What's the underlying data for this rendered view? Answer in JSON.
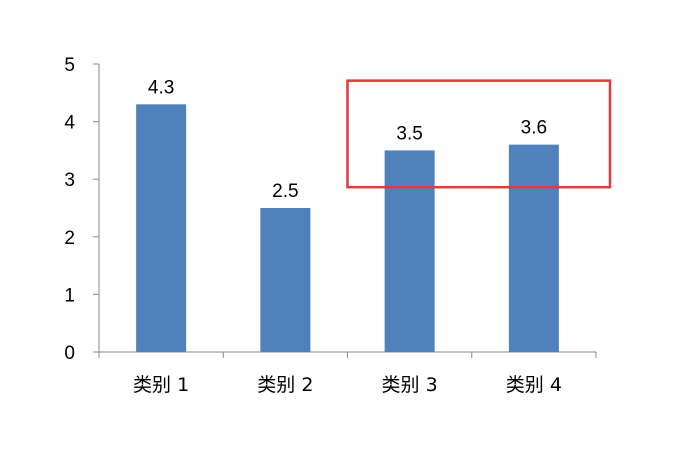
{
  "chart_data": {
    "type": "bar",
    "categories": [
      "类别 1",
      "类别 2",
      "类别 3",
      "类别 4"
    ],
    "values": [
      4.3,
      2.5,
      3.5,
      3.6
    ],
    "data_labels": [
      "4.3",
      "2.5",
      "3.5",
      "3.6"
    ],
    "ylim": [
      0,
      5
    ],
    "yticks": [
      0,
      1,
      2,
      3,
      4,
      5
    ],
    "ytick_labels": [
      "0",
      "1",
      "2",
      "3",
      "4",
      "5"
    ],
    "grid": false,
    "legend": "none",
    "bar_color": "#4f81bd",
    "axis_color": "#898989",
    "highlight": {
      "categories": [
        "类别 3",
        "类别 4"
      ],
      "color": "#e03a3a"
    }
  }
}
